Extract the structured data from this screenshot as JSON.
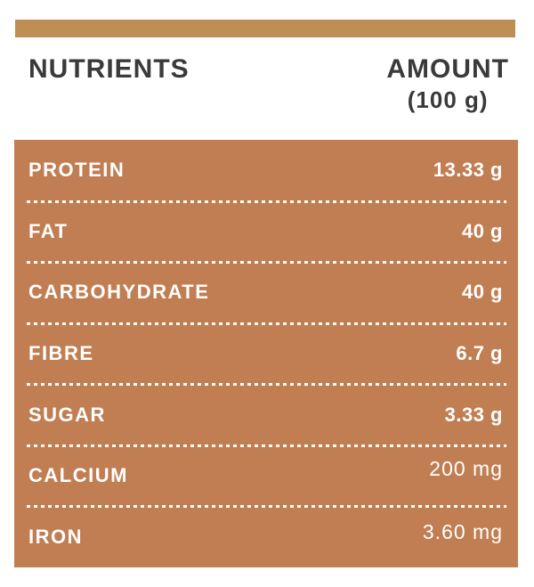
{
  "colors": {
    "accent_bar": "#bf8e55",
    "table_background": "#c07e52",
    "heading_text": "#3a3a3a",
    "table_text": "#ffffff"
  },
  "header": {
    "nutrients_label": "NUTRIENTS",
    "amount_label": "AMOUNT",
    "amount_unit": "(100 g)"
  },
  "table": {
    "rows": [
      {
        "label": "PROTEIN",
        "value": "13.33 g"
      },
      {
        "label": "FAT",
        "value": "40 g"
      },
      {
        "label": "CARBOHYDRATE",
        "value": "40 g"
      },
      {
        "label": "FIBRE",
        "value": "6.7 g"
      },
      {
        "label": "SUGAR",
        "value": "3.33 g"
      },
      {
        "label": "CALCIUM",
        "value": "200 mg"
      },
      {
        "label": "IRON",
        "value": "3.60 mg"
      }
    ]
  }
}
